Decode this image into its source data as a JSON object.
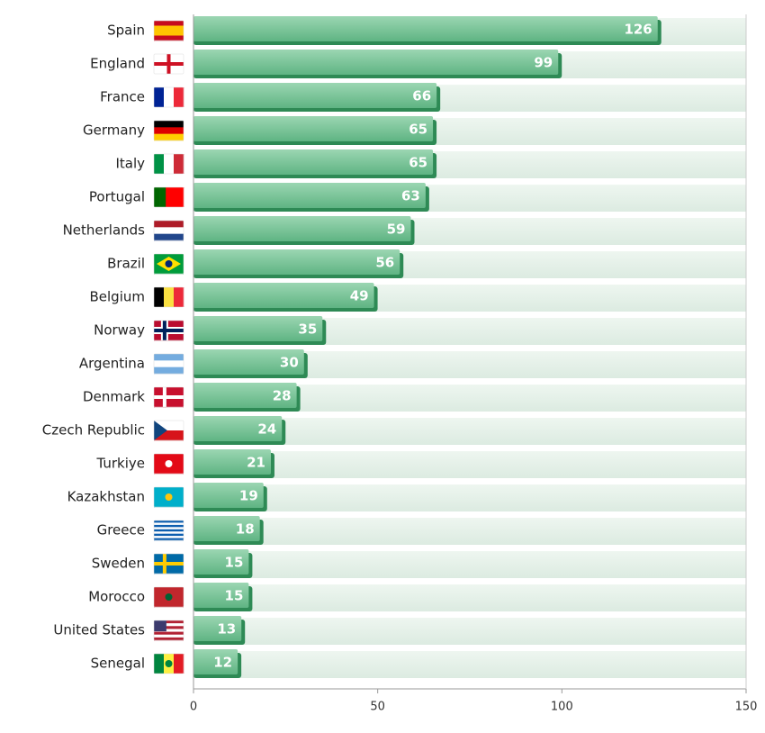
{
  "chart_data": {
    "type": "hbar",
    "categories": [
      "Spain",
      "England",
      "France",
      "Germany",
      "Italy",
      "Portugal",
      "Netherlands",
      "Brazil",
      "Belgium",
      "Norway",
      "Argentina",
      "Denmark",
      "Czech Republic",
      "Turkiye",
      "Kazakhstan",
      "Greece",
      "Sweden",
      "Morocco",
      "United States",
      "Senegal"
    ],
    "values": [
      126,
      99,
      66,
      65,
      65,
      63,
      59,
      56,
      49,
      35,
      30,
      28,
      24,
      21,
      19,
      18,
      15,
      15,
      13,
      12
    ],
    "color": "#6fbf8f",
    "xlim": [
      0,
      150
    ],
    "xticks": [
      0,
      50,
      100,
      150
    ]
  }
}
